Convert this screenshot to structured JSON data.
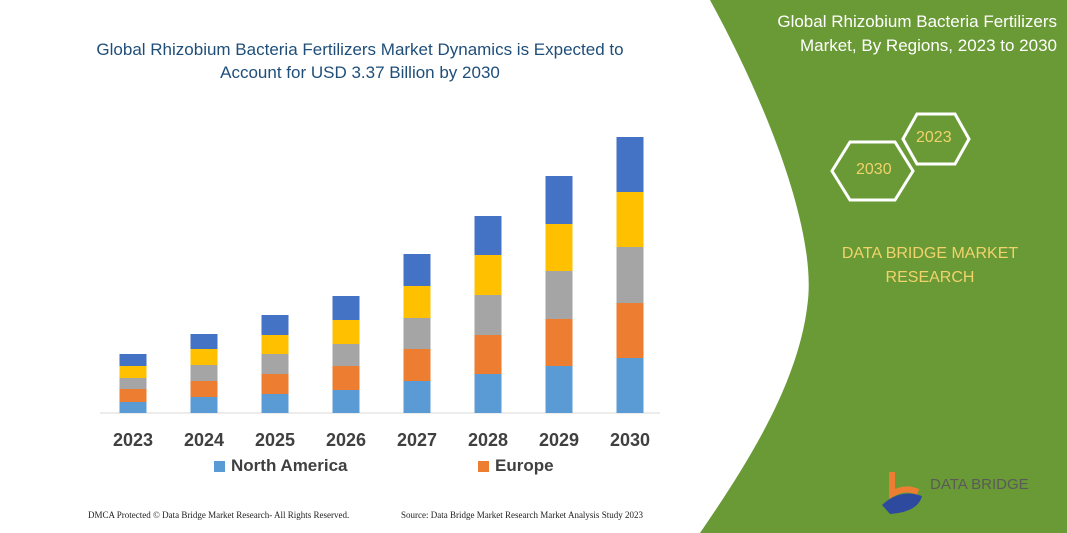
{
  "chart_data": {
    "type": "bar",
    "stacked": true,
    "title": "Global Rhizobium Bacteria Fertilizers Market Dynamics is Expected to Account for USD 3.37 Billion by 2030",
    "categories": [
      "2023",
      "2024",
      "2025",
      "2026",
      "2027",
      "2028",
      "2029",
      "2030"
    ],
    "series": [
      {
        "name": "North America",
        "color": "#5b9bd5",
        "values": [
          11,
          16,
          19,
          23,
          32,
          39,
          47,
          55
        ]
      },
      {
        "name": "Europe",
        "color": "#ed7d31",
        "values": [
          13,
          16,
          20,
          24,
          32,
          39,
          47,
          55
        ]
      },
      {
        "color": "#a5a5a5",
        "values": [
          11,
          16,
          20,
          22,
          31,
          40,
          48,
          56
        ]
      },
      {
        "color": "#ffc000",
        "values": [
          12,
          16,
          19,
          24,
          32,
          40,
          47,
          55
        ]
      },
      {
        "color": "#4472c4",
        "values": [
          12,
          15,
          20,
          24,
          32,
          39,
          48,
          55
        ]
      }
    ],
    "xlabel": "",
    "ylabel": "",
    "y_axis_shown": false,
    "grid": false,
    "legend_position": "bottom"
  },
  "side_panel": {
    "title": "Global Rhizobium Bacteria Fertilizers Market, By Regions, 2023 to 2030",
    "hex_years": [
      "2030",
      "2023"
    ],
    "brand": "DATA BRIDGE MARKET RESEARCH",
    "color": "#6a9a36"
  },
  "logo": {
    "text": "DATA BRIDGE"
  },
  "footer": {
    "left": "DMCA Protected © Data Bridge Market Research- All Rights Reserved.",
    "right": "Source: Data Bridge Market Research Market Analysis Study 2023"
  }
}
